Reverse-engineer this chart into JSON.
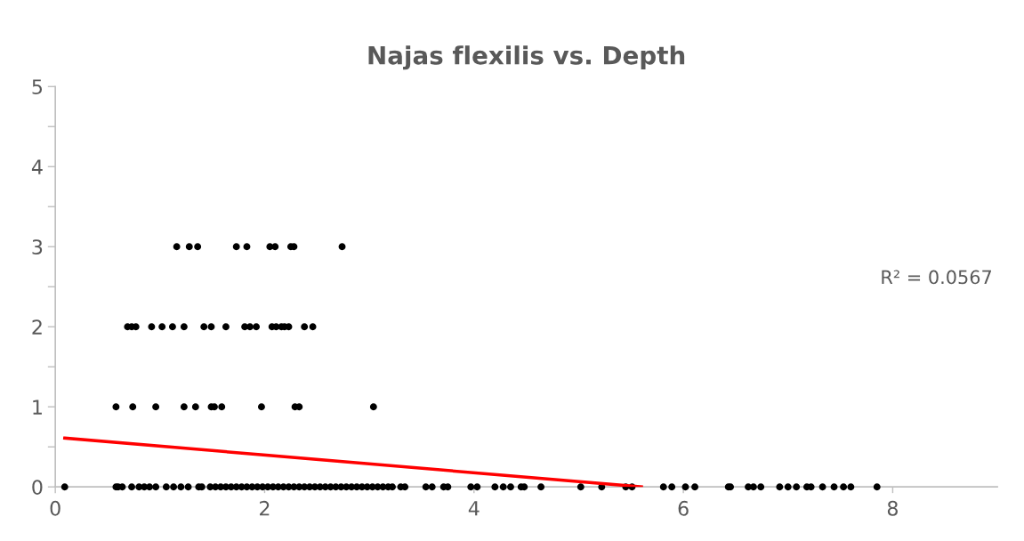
{
  "chart_data": {
    "type": "scatter",
    "title": "Najas flexilis vs. Depth",
    "xlim": [
      0,
      9
    ],
    "xticks": [
      0,
      2,
      4,
      6,
      8
    ],
    "ylim": [
      0,
      5
    ],
    "yticks": [
      0,
      {
        "value": 0.5,
        "label": null
      },
      1,
      {
        "value": 1.5,
        "label": null
      },
      2,
      {
        "value": 2.5,
        "label": null
      },
      3,
      {
        "value": 3.5,
        "label": null
      },
      4,
      {
        "value": 4.5,
        "label": null
      },
      5
    ],
    "grid": false,
    "legend": false,
    "marker": "circle",
    "annotations": [
      "R² = 0.0567"
    ],
    "series": [
      {
        "color": "#000000",
        "x": [
          1.16,
          1.28,
          1.36,
          1.73,
          1.83,
          2.05,
          2.1,
          2.25,
          2.28,
          2.74,
          0.69,
          0.73,
          0.77,
          0.92,
          1.02,
          1.12,
          1.23,
          1.42,
          1.49,
          1.63,
          1.81,
          1.86,
          1.92,
          2.07,
          2.11,
          2.16,
          2.19,
          2.23,
          2.38,
          2.46,
          0.58,
          0.74,
          0.96,
          1.23,
          1.34,
          1.49,
          1.52,
          1.59,
          1.97,
          2.29,
          2.33,
          3.04,
          0.09,
          0.58,
          0.6,
          0.64,
          0.73,
          0.8,
          0.85,
          0.9,
          0.96,
          1.06,
          1.13,
          1.2,
          1.27,
          1.37,
          1.4,
          1.48,
          1.53,
          1.58,
          1.63,
          1.68,
          1.73,
          1.78,
          1.83,
          1.88,
          1.93,
          1.98,
          2.03,
          2.08,
          2.13,
          2.18,
          2.23,
          2.28,
          2.33,
          2.38,
          2.43,
          2.48,
          2.53,
          2.58,
          2.63,
          2.68,
          2.73,
          2.78,
          2.83,
          2.88,
          2.93,
          2.98,
          3.03,
          3.08,
          3.13,
          3.18,
          3.22,
          3.3,
          3.34,
          3.54,
          3.6,
          3.71,
          3.75,
          3.97,
          4.03,
          4.2,
          4.28,
          4.35,
          4.45,
          4.48,
          4.64,
          5.02,
          5.22,
          5.45,
          5.51,
          5.81,
          5.89,
          6.02,
          6.11,
          6.43,
          6.45,
          6.62,
          6.67,
          6.74,
          6.92,
          7.0,
          7.08,
          7.18,
          7.22,
          7.33,
          7.44,
          7.53,
          7.6,
          7.85
        ],
        "values": [
          3,
          3,
          3,
          3,
          3,
          3,
          3,
          3,
          3,
          3,
          2,
          2,
          2,
          2,
          2,
          2,
          2,
          2,
          2,
          2,
          2,
          2,
          2,
          2,
          2,
          2,
          2,
          2,
          2,
          2,
          1,
          1,
          1,
          1,
          1,
          1,
          1,
          1,
          1,
          1,
          1,
          1,
          0,
          0,
          0,
          0,
          0,
          0,
          0,
          0,
          0,
          0,
          0,
          0,
          0,
          0,
          0,
          0,
          0,
          0,
          0,
          0,
          0,
          0,
          0,
          0,
          0,
          0,
          0,
          0,
          0,
          0,
          0,
          0,
          0,
          0,
          0,
          0,
          0,
          0,
          0,
          0,
          0,
          0,
          0,
          0,
          0,
          0,
          0,
          0,
          0,
          0,
          0,
          0,
          0,
          0,
          0,
          0,
          0,
          0,
          0,
          0,
          0,
          0,
          0,
          0,
          0,
          0,
          0,
          0,
          0,
          0,
          0,
          0,
          0,
          0,
          0,
          0,
          0,
          0,
          0,
          0,
          0,
          0,
          0,
          0,
          0,
          0,
          0,
          0
        ]
      },
      {
        "type": "line",
        "color": "#ff0000",
        "marker": "none",
        "line_style": "solid",
        "x": [
          0.09,
          5.6
        ],
        "values": [
          0.61,
          0
        ]
      }
    ]
  }
}
